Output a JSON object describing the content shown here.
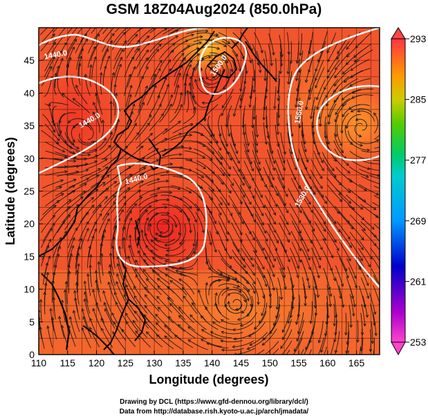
{
  "title": "GSM 18Z04Aug2024 (850.0hPa)",
  "xlabel": "Longitude (degrees)",
  "ylabel": "Latitude  (degrees)",
  "x_ticks": [
    "110",
    "115",
    "120",
    "125",
    "130",
    "135",
    "140",
    "145",
    "150",
    "155",
    "160",
    "165"
  ],
  "y_ticks": [
    "0",
    "5",
    "10",
    "15",
    "20",
    "25",
    "30",
    "35",
    "40",
    "45"
  ],
  "colorbar_ticks": [
    "293",
    "285",
    "277",
    "269",
    "261",
    "253"
  ],
  "colorbar_range": [
    253,
    293
  ],
  "contour_labels": [
    {
      "text": "1440.0",
      "lon": 113,
      "lat": 45.5,
      "rot": -10
    },
    {
      "text": "1440.0",
      "lon": 119,
      "lat": 35.5,
      "rot": -30
    },
    {
      "text": "1440.0",
      "lon": 127,
      "lat": 26.5,
      "rot": -15
    },
    {
      "text": "1500.0",
      "lon": 141.5,
      "lat": 44,
      "rot": -55
    },
    {
      "text": "1560.0",
      "lon": 155.5,
      "lat": 37,
      "rot": -80
    },
    {
      "text": "1530.0",
      "lon": 156,
      "lat": 24,
      "rot": -60
    }
  ],
  "credits": {
    "line1": "Drawing by DCL (https://www.gfd-dennou.org/library/dcl/)",
    "line2": "Data from http://database.rish.kyoto-u.ac.jp/arch/jmadata/"
  }
}
